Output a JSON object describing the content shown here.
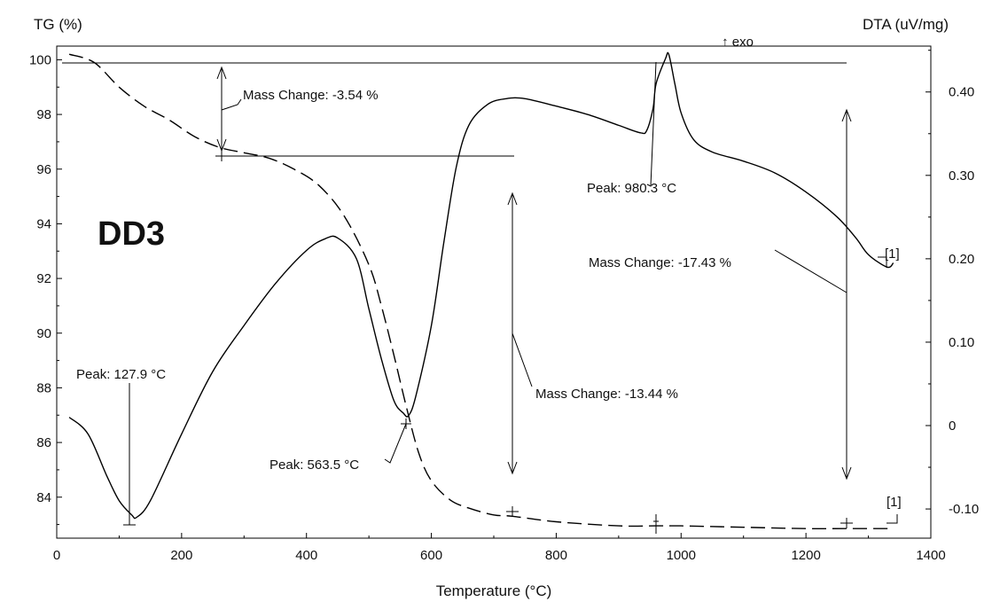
{
  "chart_data": {
    "type": "line",
    "sample_label": "DD3",
    "xlabel": "Temperature (°C)",
    "ylabel_left": "TG (%)",
    "ylabel_right": "DTA (uV/mg)",
    "exo_label": "↑ exo",
    "xlim": [
      0,
      1400
    ],
    "ylim_left": [
      82.5,
      100.5
    ],
    "ylim_right": [
      -0.135,
      0.455
    ],
    "x_ticks": [
      0,
      200,
      400,
      600,
      800,
      1000,
      1200,
      1400
    ],
    "x_tick_labels": [
      "0",
      "200",
      "400",
      "600",
      "800",
      "1000",
      "1200",
      "1400"
    ],
    "y_left_ticks": [
      84,
      86,
      88,
      90,
      92,
      94,
      96,
      98,
      100
    ],
    "y_left_tick_labels": [
      "84",
      "86",
      "88",
      "90",
      "92",
      "94",
      "96",
      "98",
      "100"
    ],
    "y_right_ticks": [
      -0.1,
      0,
      0.1,
      0.2,
      0.3,
      0.4
    ],
    "y_right_tick_labels": [
      "-0.10",
      "0",
      "0.10",
      "0.20",
      "0.30",
      "0.40"
    ],
    "grid": false,
    "series": [
      {
        "axis": "left",
        "style": "dashed",
        "x": [
          20,
          60,
          100,
          140,
          180,
          220,
          260,
          300,
          340,
          380,
          420,
          460,
          500,
          520,
          540,
          560,
          580,
          600,
          630,
          660,
          700,
          730,
          800,
          900,
          960,
          1000,
          1100,
          1200,
          1260,
          1340
        ],
        "y": [
          100.2,
          99.9,
          99.0,
          98.3,
          97.8,
          97.2,
          96.8,
          96.6,
          96.4,
          96.0,
          95.4,
          94.3,
          92.5,
          91.0,
          89.2,
          87.3,
          85.6,
          84.6,
          83.9,
          83.6,
          83.35,
          83.3,
          83.1,
          82.95,
          82.95,
          82.95,
          82.9,
          82.85,
          82.85,
          82.85
        ]
      },
      {
        "axis": "right",
        "style": "solid",
        "x": [
          20,
          50,
          80,
          100,
          120,
          127.9,
          150,
          200,
          250,
          300,
          350,
          400,
          430,
          450,
          480,
          500,
          520,
          540,
          555,
          563.5,
          575,
          600,
          620,
          640,
          660,
          690,
          720,
          750,
          800,
          850,
          900,
          935,
          945,
          955,
          960,
          975,
          980.3,
          990,
          1000,
          1020,
          1050,
          1100,
          1150,
          1200,
          1250,
          1280,
          1300,
          1330,
          1340
        ],
        "y": [
          0.01,
          -0.01,
          -0.06,
          -0.09,
          -0.107,
          -0.11,
          -0.09,
          -0.01,
          0.065,
          0.12,
          0.17,
          0.21,
          0.224,
          0.225,
          0.2,
          0.14,
          0.08,
          0.03,
          0.015,
          0.012,
          0.035,
          0.12,
          0.22,
          0.31,
          0.36,
          0.385,
          0.392,
          0.392,
          0.383,
          0.373,
          0.36,
          0.351,
          0.354,
          0.38,
          0.41,
          0.44,
          0.445,
          0.41,
          0.375,
          0.343,
          0.328,
          0.317,
          0.303,
          0.28,
          0.25,
          0.225,
          0.205,
          0.19,
          0.195
        ]
      }
    ],
    "annotations": {
      "mass_change_1": "Mass Change: -3.54 %",
      "mass_change_2": "Mass Change: -13.44 %",
      "mass_change_3": "Mass Change: -17.43 %",
      "peak_1": "Peak: 127.9 °C",
      "peak_2": "Peak: 563.5 °C",
      "peak_3": "Peak: 980.3 °C",
      "step_marker_tg": "[1]",
      "step_marker_dta": "[1]"
    }
  }
}
